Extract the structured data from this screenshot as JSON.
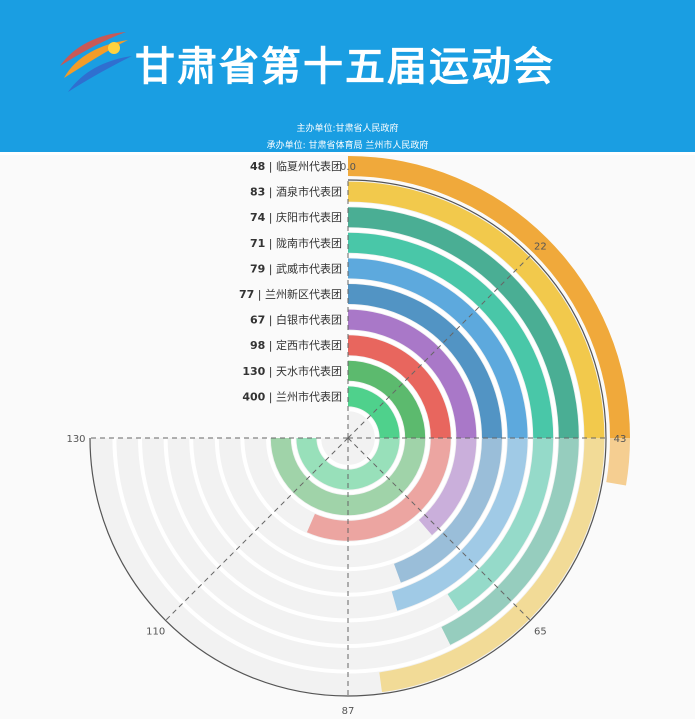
{
  "header": {
    "title": "甘肃省第十五届运动会",
    "organizer": "主办单位:甘肃省人民政府",
    "undertaker": "承办单位: 甘肃省体育局   兰州市人民政府"
  },
  "colors": {
    "banner": "#1a9ee2",
    "series": [
      "#f0a93b",
      "#f2c94c",
      "#4aae94",
      "#49c7a8",
      "#5da9dd",
      "#5294c4",
      "#a978c8",
      "#e8665e",
      "#5cba6e",
      "#4fd18c"
    ]
  },
  "chart_data": {
    "type": "polar-bar",
    "angle_axis": {
      "min": 0,
      "max": 130,
      "ticks": [
        "0.0",
        "22",
        "43",
        "65",
        "87",
        "110",
        "130"
      ]
    },
    "categories": [
      "临夏州代表团",
      "酒泉市代表团",
      "庆阳市代表团",
      "陇南市代表团",
      "武威市代表团",
      "兰州新区代表团",
      "白银市代表团",
      "定西市代表团",
      "天水市代表团",
      "兰州市代表团"
    ],
    "values": [
      48,
      83,
      74,
      71,
      79,
      77,
      67,
      98,
      130,
      400
    ],
    "labels": [
      "48 | 临夏州代表团",
      "83 | 酒泉市代表团",
      "74 | 庆阳市代表团",
      "71 | 陇南市代表团",
      "79 | 武威市代表团",
      "77 | 兰州新区代表团",
      "67 | 白银市代表团",
      "98 | 定西市代表团",
      "130 | 天水市代表团",
      "400 | 兰州市代表团"
    ]
  }
}
